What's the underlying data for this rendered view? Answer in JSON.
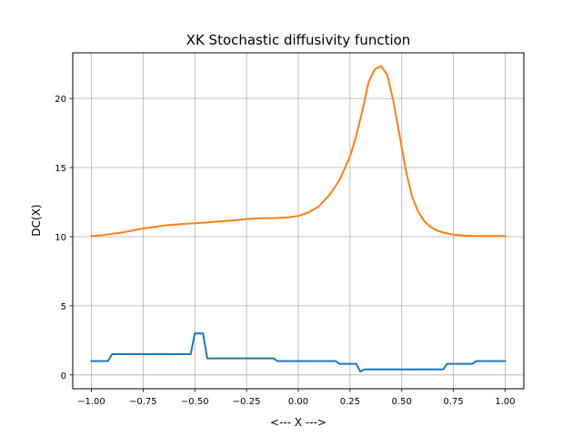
{
  "chart_data": {
    "type": "line",
    "title": "XK Stochastic diffusivity function",
    "xlabel": "<--- X --->",
    "ylabel": "DC(X)",
    "xlim": [
      -1.09,
      1.09
    ],
    "ylim": [
      -1.0,
      23.3
    ],
    "grid": true,
    "xticks": [
      -1.0,
      -0.75,
      -0.5,
      -0.25,
      0.0,
      0.25,
      0.5,
      0.75,
      1.0
    ],
    "xtick_labels": [
      "−1.00",
      "−0.75",
      "−0.50",
      "−0.25",
      "0.00",
      "0.25",
      "0.50",
      "0.75",
      "1.00"
    ],
    "yticks": [
      0,
      5,
      10,
      15,
      20
    ],
    "ytick_labels": [
      "0",
      "5",
      "10",
      "15",
      "20"
    ],
    "series": [
      {
        "color": "#1f77b4",
        "x": [
          -1.0,
          -0.92,
          -0.9,
          -0.52,
          -0.5,
          -0.46,
          -0.44,
          -0.12,
          -0.1,
          0.18,
          0.2,
          0.28,
          0.3,
          0.32,
          0.7,
          0.72,
          0.84,
          0.86,
          1.0
        ],
        "y": [
          1.0,
          1.0,
          1.5,
          1.5,
          3.0,
          3.0,
          1.2,
          1.2,
          1.0,
          1.0,
          0.8,
          0.8,
          0.25,
          0.4,
          0.4,
          0.8,
          0.8,
          1.0,
          1.0
        ]
      },
      {
        "color": "#ff7f0e",
        "x": [
          -1.0,
          -0.95,
          -0.9,
          -0.85,
          -0.8,
          -0.75,
          -0.7,
          -0.65,
          -0.6,
          -0.55,
          -0.5,
          -0.45,
          -0.4,
          -0.35,
          -0.3,
          -0.25,
          -0.2,
          -0.15,
          -0.1,
          -0.05,
          0.0,
          0.05,
          0.1,
          0.15,
          0.2,
          0.25,
          0.28,
          0.31,
          0.34,
          0.37,
          0.4,
          0.43,
          0.46,
          0.49,
          0.52,
          0.55,
          0.58,
          0.61,
          0.64,
          0.67,
          0.7,
          0.75,
          0.8,
          0.85,
          0.9,
          0.95,
          1.0
        ],
        "y": [
          10.05,
          10.1,
          10.2,
          10.3,
          10.45,
          10.6,
          10.7,
          10.8,
          10.87,
          10.93,
          10.97,
          11.02,
          11.08,
          11.14,
          11.2,
          11.27,
          11.32,
          11.34,
          11.35,
          11.4,
          11.5,
          11.75,
          12.2,
          13.0,
          14.1,
          15.8,
          17.3,
          19.1,
          21.2,
          22.1,
          22.35,
          21.7,
          19.8,
          17.3,
          14.8,
          12.9,
          11.8,
          11.1,
          10.7,
          10.45,
          10.3,
          10.15,
          10.08,
          10.05,
          10.05,
          10.05,
          10.05
        ]
      }
    ]
  }
}
